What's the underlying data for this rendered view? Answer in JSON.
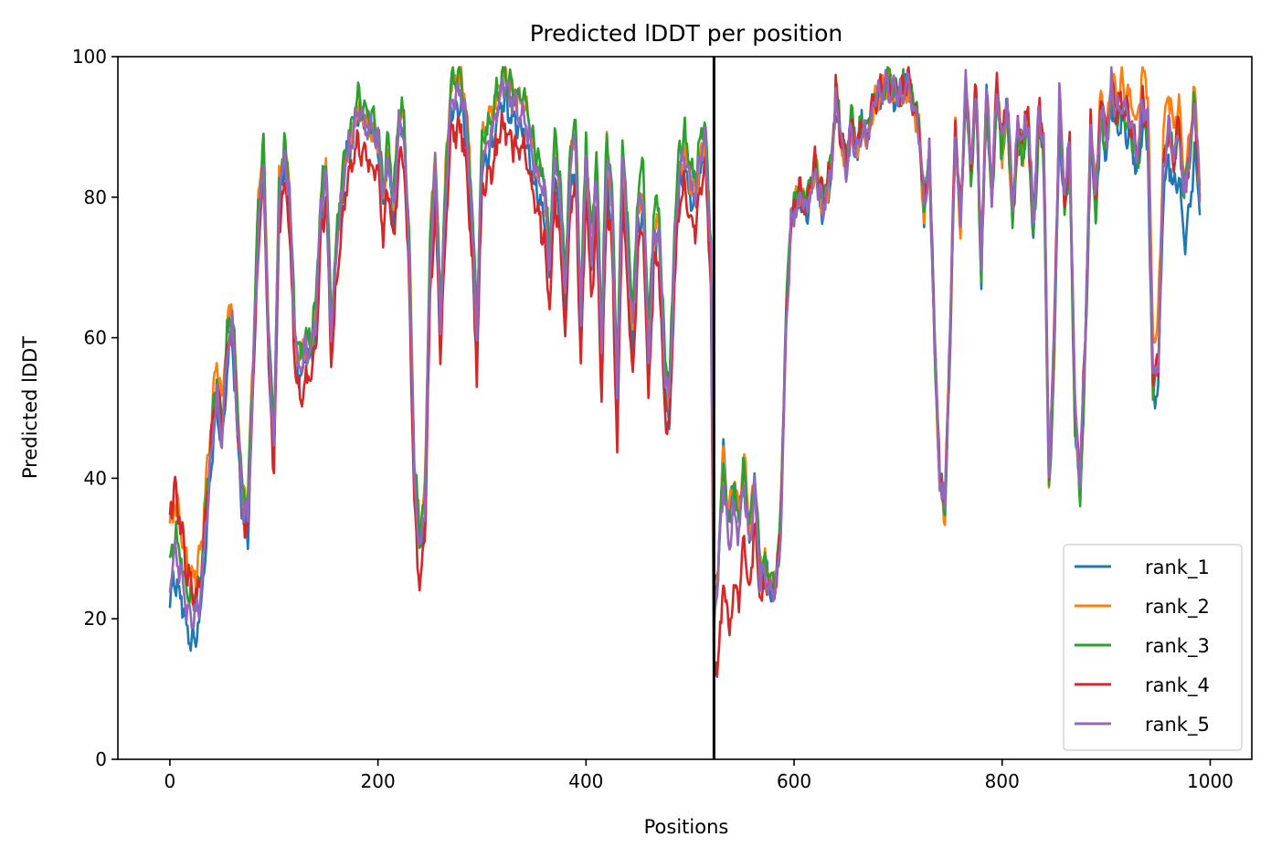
{
  "chart_data": {
    "type": "line",
    "title": "Predicted lDDT per position",
    "xlabel": "Positions",
    "ylabel": "Predicted lDDT",
    "xlim": [
      -50,
      1040
    ],
    "ylim": [
      0,
      100
    ],
    "xticks": [
      0,
      200,
      400,
      600,
      800,
      1000
    ],
    "yticks": [
      0,
      20,
      40,
      60,
      80,
      100
    ],
    "grid": false,
    "legend_position": "lower-right",
    "boundary_line": {
      "x": 523,
      "color": "#000000"
    },
    "series": [
      {
        "name": "rank_1",
        "color": "#1f77b4",
        "offsets": [
          [
            0,
            -3
          ],
          [
            180,
            0
          ],
          [
            430,
            -4
          ],
          [
            440,
            -2
          ],
          [
            520,
            -2
          ],
          [
            530,
            4
          ],
          [
            580,
            0
          ],
          [
            720,
            0
          ],
          [
            860,
            -2
          ],
          [
            950,
            -3
          ],
          [
            985,
            -8
          ],
          [
            990,
            -1
          ]
        ]
      },
      {
        "name": "rank_2",
        "color": "#ff7f0e",
        "offsets": [
          [
            0,
            8
          ],
          [
            30,
            6
          ],
          [
            60,
            3
          ],
          [
            200,
            0
          ],
          [
            240,
            3
          ],
          [
            520,
            0
          ],
          [
            535,
            4
          ],
          [
            590,
            1
          ],
          [
            870,
            -2
          ],
          [
            950,
            6
          ],
          [
            990,
            1
          ]
        ]
      },
      {
        "name": "rank_3",
        "color": "#2ca02c",
        "offsets": [
          [
            0,
            3
          ],
          [
            100,
            2
          ],
          [
            330,
            2
          ],
          [
            400,
            3
          ],
          [
            460,
            4
          ],
          [
            520,
            2
          ],
          [
            580,
            2
          ],
          [
            700,
            1
          ],
          [
            840,
            -3
          ],
          [
            990,
            0
          ]
        ]
      },
      {
        "name": "rank_4",
        "color": "#d62728",
        "offsets": [
          [
            0,
            10
          ],
          [
            30,
            2
          ],
          [
            110,
            -4
          ],
          [
            400,
            -6
          ],
          [
            460,
            -5
          ],
          [
            520,
            -4
          ],
          [
            530,
            -15
          ],
          [
            575,
            0
          ],
          [
            620,
            1
          ],
          [
            990,
            0
          ]
        ]
      },
      {
        "name": "rank_5",
        "color": "#9467bd",
        "offsets": [
          [
            0,
            0
          ],
          [
            990,
            0
          ]
        ]
      }
    ],
    "profile": [
      [
        0,
        26
      ],
      [
        5,
        29
      ],
      [
        10,
        26
      ],
      [
        15,
        22
      ],
      [
        20,
        20
      ],
      [
        25,
        20
      ],
      [
        30,
        24
      ],
      [
        35,
        34
      ],
      [
        40,
        44
      ],
      [
        45,
        52
      ],
      [
        50,
        46
      ],
      [
        55,
        58
      ],
      [
        60,
        62
      ],
      [
        65,
        48
      ],
      [
        70,
        36
      ],
      [
        75,
        34
      ],
      [
        80,
        55
      ],
      [
        85,
        76
      ],
      [
        90,
        86
      ],
      [
        95,
        58
      ],
      [
        100,
        44
      ],
      [
        105,
        80
      ],
      [
        110,
        86
      ],
      [
        115,
        80
      ],
      [
        120,
        60
      ],
      [
        125,
        55
      ],
      [
        130,
        58
      ],
      [
        135,
        58
      ],
      [
        140,
        62
      ],
      [
        145,
        78
      ],
      [
        150,
        84
      ],
      [
        155,
        60
      ],
      [
        160,
        72
      ],
      [
        165,
        80
      ],
      [
        170,
        86
      ],
      [
        175,
        88
      ],
      [
        180,
        92
      ],
      [
        190,
        90
      ],
      [
        200,
        88
      ],
      [
        205,
        80
      ],
      [
        210,
        86
      ],
      [
        215,
        78
      ],
      [
        220,
        90
      ],
      [
        225,
        90
      ],
      [
        230,
        72
      ],
      [
        235,
        40
      ],
      [
        240,
        30
      ],
      [
        245,
        35
      ],
      [
        250,
        70
      ],
      [
        255,
        84
      ],
      [
        260,
        62
      ],
      [
        265,
        80
      ],
      [
        270,
        94
      ],
      [
        280,
        95
      ],
      [
        285,
        90
      ],
      [
        290,
        78
      ],
      [
        295,
        60
      ],
      [
        300,
        86
      ],
      [
        310,
        90
      ],
      [
        320,
        96
      ],
      [
        330,
        93
      ],
      [
        340,
        92
      ],
      [
        350,
        85
      ],
      [
        360,
        80
      ],
      [
        365,
        70
      ],
      [
        370,
        86
      ],
      [
        375,
        80
      ],
      [
        380,
        66
      ],
      [
        385,
        84
      ],
      [
        390,
        88
      ],
      [
        395,
        62
      ],
      [
        400,
        86
      ],
      [
        405,
        72
      ],
      [
        410,
        82
      ],
      [
        415,
        58
      ],
      [
        420,
        86
      ],
      [
        425,
        78
      ],
      [
        430,
        50
      ],
      [
        435,
        86
      ],
      [
        440,
        72
      ],
      [
        445,
        60
      ],
      [
        450,
        78
      ],
      [
        455,
        80
      ],
      [
        460,
        56
      ],
      [
        465,
        74
      ],
      [
        470,
        76
      ],
      [
        475,
        56
      ],
      [
        480,
        50
      ],
      [
        485,
        72
      ],
      [
        490,
        84
      ],
      [
        495,
        86
      ],
      [
        500,
        82
      ],
      [
        505,
        80
      ],
      [
        510,
        86
      ],
      [
        515,
        88
      ],
      [
        520,
        72
      ],
      [
        523,
        20
      ],
      [
        527,
        26
      ],
      [
        532,
        40
      ],
      [
        537,
        30
      ],
      [
        542,
        36
      ],
      [
        547,
        32
      ],
      [
        552,
        40
      ],
      [
        557,
        30
      ],
      [
        562,
        38
      ],
      [
        567,
        26
      ],
      [
        572,
        26
      ],
      [
        577,
        24
      ],
      [
        582,
        24
      ],
      [
        587,
        32
      ],
      [
        592,
        60
      ],
      [
        597,
        76
      ],
      [
        605,
        80
      ],
      [
        612,
        78
      ],
      [
        620,
        84
      ],
      [
        628,
        78
      ],
      [
        636,
        84
      ],
      [
        640,
        94
      ],
      [
        645,
        88
      ],
      [
        650,
        84
      ],
      [
        655,
        90
      ],
      [
        660,
        86
      ],
      [
        665,
        90
      ],
      [
        670,
        88
      ],
      [
        675,
        92
      ],
      [
        680,
        94
      ],
      [
        690,
        96
      ],
      [
        700,
        94
      ],
      [
        710,
        96
      ],
      [
        720,
        90
      ],
      [
        725,
        78
      ],
      [
        730,
        86
      ],
      [
        735,
        60
      ],
      [
        740,
        40
      ],
      [
        745,
        36
      ],
      [
        750,
        60
      ],
      [
        755,
        90
      ],
      [
        760,
        76
      ],
      [
        765,
        96
      ],
      [
        770,
        84
      ],
      [
        775,
        96
      ],
      [
        780,
        70
      ],
      [
        785,
        96
      ],
      [
        790,
        80
      ],
      [
        795,
        96
      ],
      [
        800,
        88
      ],
      [
        805,
        94
      ],
      [
        810,
        78
      ],
      [
        815,
        90
      ],
      [
        820,
        88
      ],
      [
        825,
        92
      ],
      [
        830,
        76
      ],
      [
        835,
        92
      ],
      [
        840,
        88
      ],
      [
        845,
        40
      ],
      [
        850,
        60
      ],
      [
        855,
        94
      ],
      [
        860,
        80
      ],
      [
        865,
        88
      ],
      [
        870,
        50
      ],
      [
        875,
        40
      ],
      [
        880,
        60
      ],
      [
        885,
        90
      ],
      [
        890,
        80
      ],
      [
        895,
        94
      ],
      [
        900,
        88
      ],
      [
        905,
        96
      ],
      [
        910,
        92
      ],
      [
        915,
        94
      ],
      [
        920,
        92
      ],
      [
        925,
        90
      ],
      [
        930,
        86
      ],
      [
        935,
        94
      ],
      [
        940,
        90
      ],
      [
        945,
        54
      ],
      [
        950,
        56
      ],
      [
        955,
        84
      ],
      [
        960,
        90
      ],
      [
        965,
        86
      ],
      [
        970,
        90
      ],
      [
        975,
        80
      ],
      [
        980,
        86
      ],
      [
        985,
        94
      ],
      [
        990,
        80
      ]
    ]
  }
}
